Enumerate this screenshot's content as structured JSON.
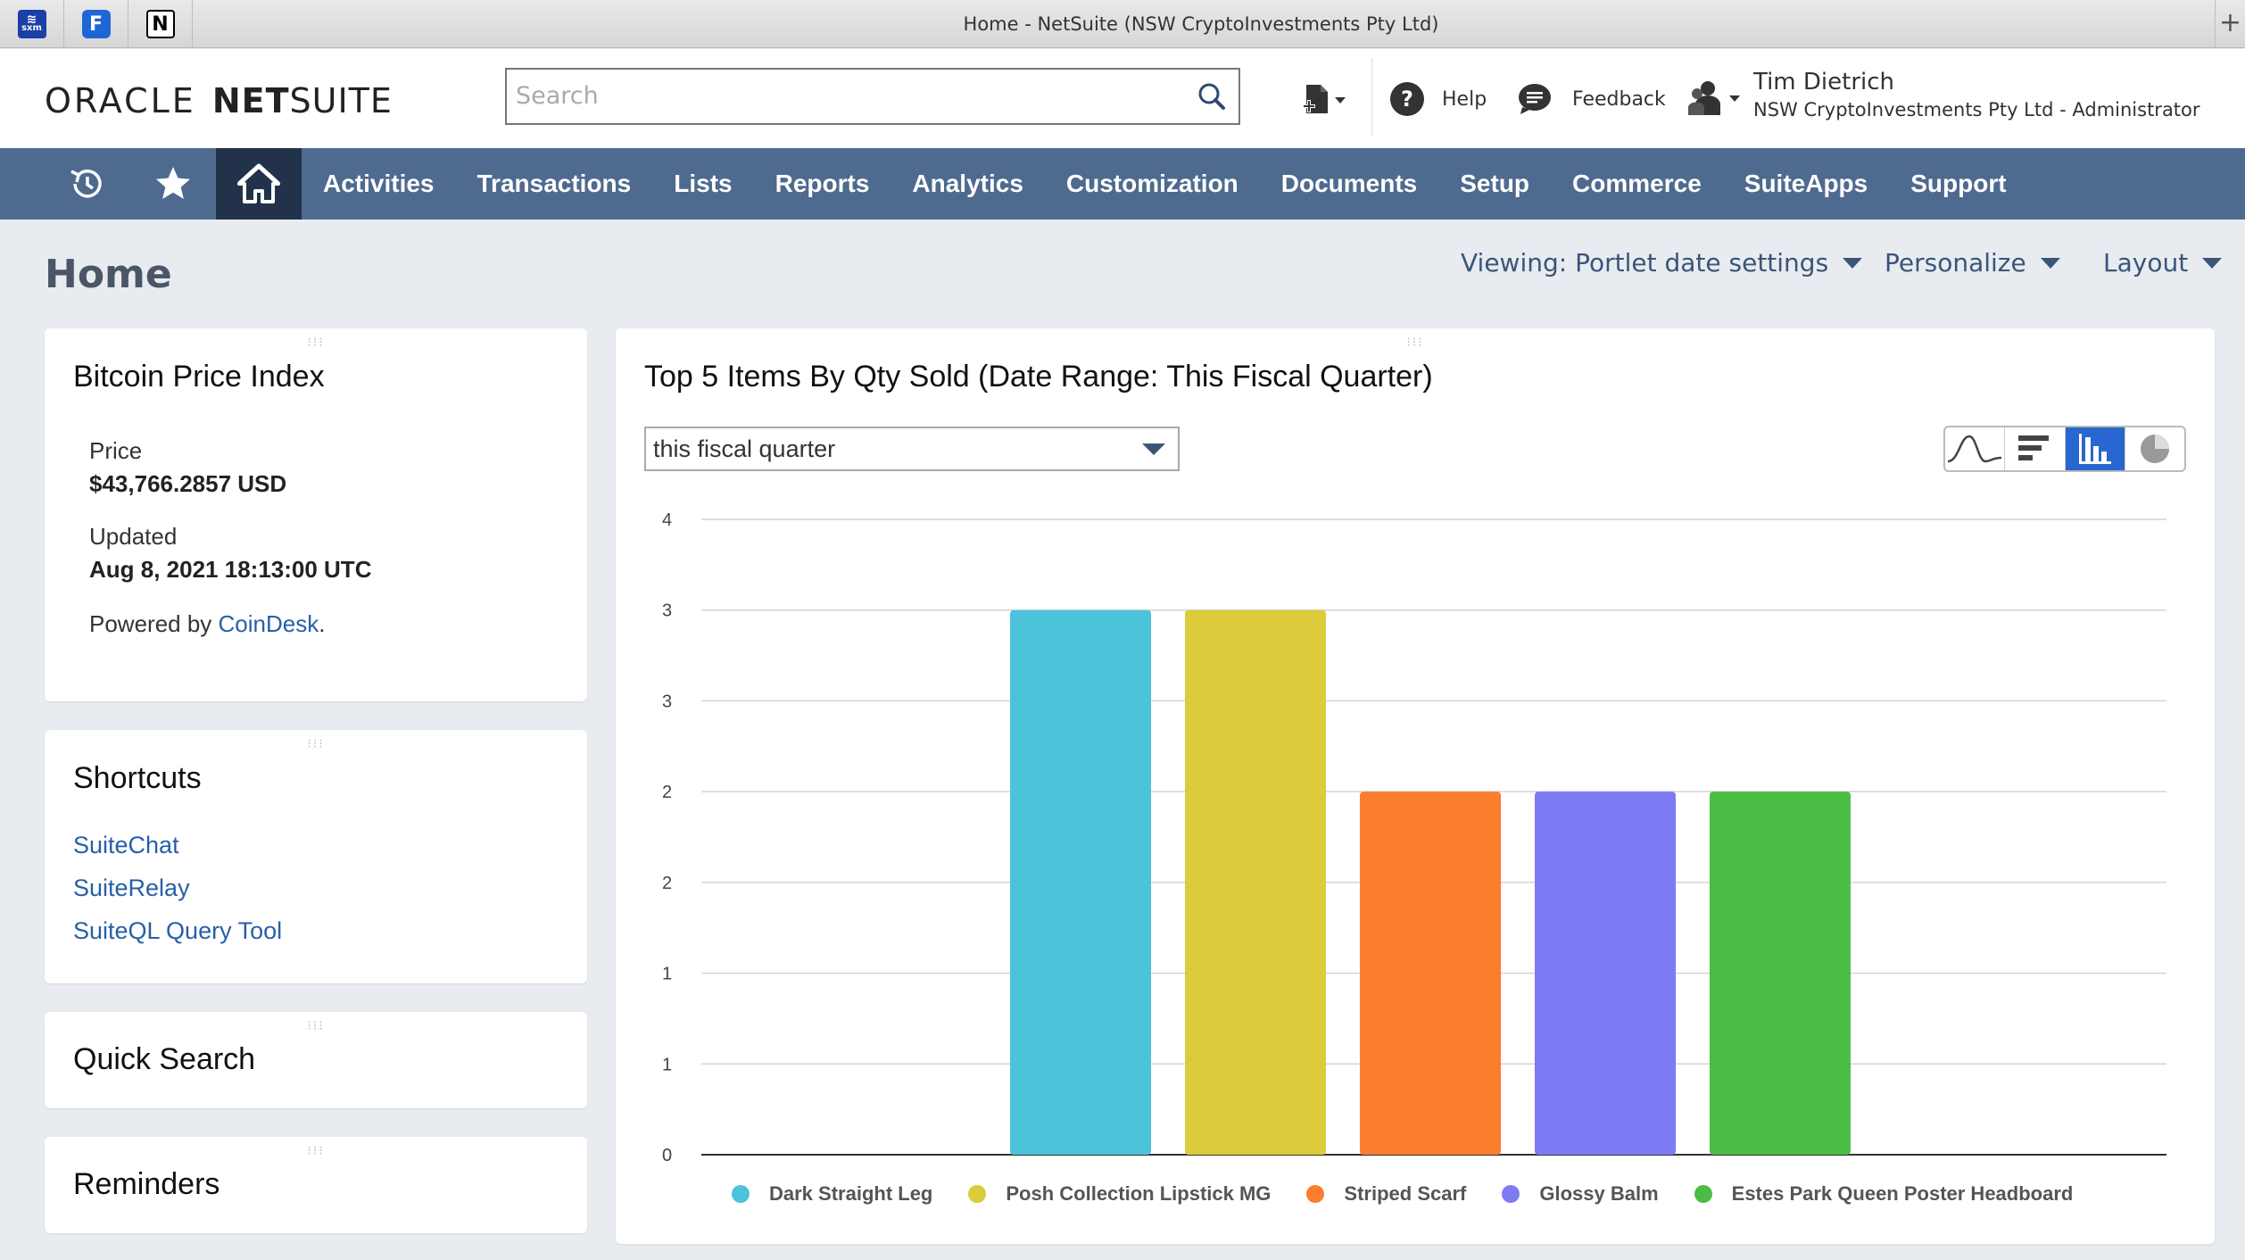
{
  "browser": {
    "window_title": "Home - NetSuite (NSW CryptoInvestments Pty Ltd)",
    "favicons": [
      {
        "name": "sxm-icon",
        "text": "sxm"
      },
      {
        "name": "f-app-icon",
        "text": "F"
      },
      {
        "name": "notion-icon",
        "text": "N"
      }
    ],
    "new_tab": "+"
  },
  "header": {
    "logo_oracle": "ORACLE",
    "logo_net": "NET",
    "logo_suite": "SUITE",
    "search_placeholder": "Search",
    "help_label": "Help",
    "feedback_label": "Feedback",
    "user_name": "Tim Dietrich",
    "user_role": "NSW CryptoInvestments Pty Ltd - Administrator"
  },
  "nav": {
    "items": [
      "Activities",
      "Transactions",
      "Lists",
      "Reports",
      "Analytics",
      "Customization",
      "Documents",
      "Setup",
      "Commerce",
      "SuiteApps",
      "Support"
    ]
  },
  "page": {
    "title": "Home",
    "viewing_label": "Viewing: Portlet date settings",
    "personalize_label": "Personalize",
    "layout_label": "Layout"
  },
  "bitcoin": {
    "title": "Bitcoin Price Index",
    "price_label": "Price",
    "price_value": "$43,766.2857 USD",
    "updated_label": "Updated",
    "updated_value": "Aug 8, 2021 18:13:00 UTC",
    "powered_prefix": "Powered by ",
    "powered_link": "CoinDesk",
    "powered_suffix": "."
  },
  "shortcuts": {
    "title": "Shortcuts",
    "items": [
      "SuiteChat",
      "SuiteRelay",
      "SuiteQL Query Tool"
    ]
  },
  "quick_search": {
    "title": "Quick Search"
  },
  "reminders": {
    "title": "Reminders"
  },
  "chart_portlet": {
    "title": "Top 5 Items By Qty Sold (Date Range: This Fiscal Quarter)",
    "date_range_value": "this fiscal quarter",
    "chart_type_buttons": [
      "line-chart-icon",
      "horizontal-bar-chart-icon",
      "column-chart-icon",
      "pie-chart-icon"
    ],
    "active_chart_type": "column-chart-icon"
  },
  "chart_data": {
    "type": "bar",
    "title": "Top 5 Items By Qty Sold (Date Range: This Fiscal Quarter)",
    "categories": [
      "Dark Straight Leg",
      "Posh Collection Lipstick MG",
      "Striped Scarf",
      "Glossy Balm",
      "Estes Park Queen Poster Headboard"
    ],
    "values": [
      3,
      3,
      2,
      2,
      2
    ],
    "colors": [
      "#4cc3da",
      "#dccb3a",
      "#fb7d2e",
      "#7e7af3",
      "#4cbd44"
    ],
    "ylim": [
      0,
      3.5
    ],
    "y_ticks": [
      0,
      0.5,
      1,
      1.5,
      2,
      2.5,
      3,
      3.5
    ],
    "y_tick_labels": [
      "0",
      "1",
      "1",
      "2",
      "2",
      "3",
      "3",
      "4"
    ],
    "grid": true,
    "legend": "bottom"
  }
}
